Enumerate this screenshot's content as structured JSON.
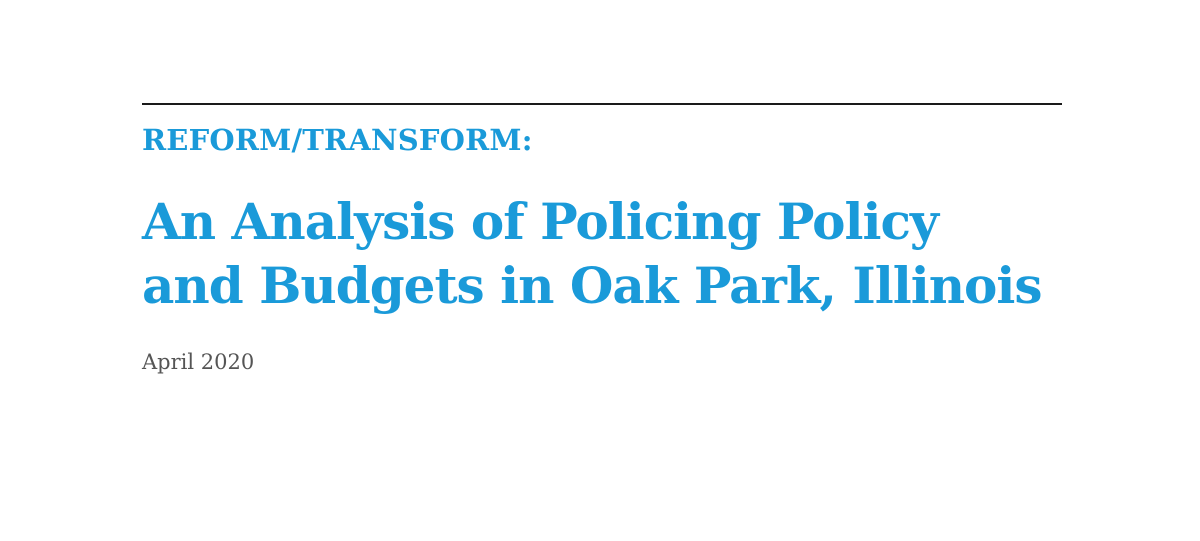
{
  "cover": {
    "kicker": "REFORM/TRANSFORM:",
    "title_lines": [
      "An Analysis of Policing Policy",
      "and Budgets in Oak Park, Illinois"
    ],
    "date": "April 2020"
  },
  "colors": {
    "accent": "#1a9ad9",
    "rule": "#1a1a1a",
    "date_text": "#555555",
    "background": "#ffffff"
  }
}
